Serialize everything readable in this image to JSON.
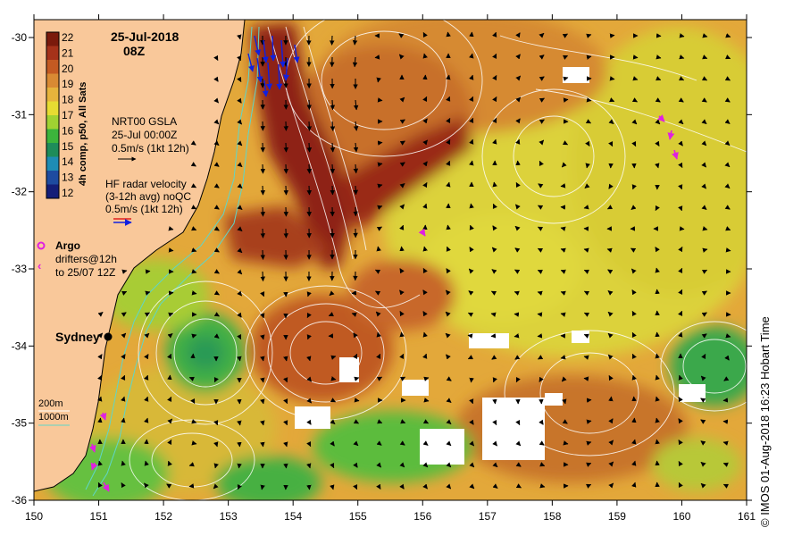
{
  "map": {
    "date": "25-Jul-2018",
    "time": "08Z",
    "colorbar": {
      "label": "4h comp, p50, All Sats",
      "ticks": [
        "22",
        "21",
        "20",
        "19",
        "18",
        "17",
        "16",
        "15",
        "14",
        "13",
        "12"
      ],
      "colors": [
        "#7a1a0c",
        "#a5321a",
        "#c45a22",
        "#d98a33",
        "#e6b43c",
        "#e6dc32",
        "#a0d232",
        "#3cb43c",
        "#1e8c5a",
        "#1e8cb4",
        "#1e4ba0",
        "#141e78"
      ]
    },
    "gsla": {
      "line1": "NRT00 GSLA",
      "line2": "25-Jul 00:00Z",
      "line3": "0.5m/s (1kt 12h)"
    },
    "radar": {
      "line1": "HF radar velocity",
      "line2": "(3-12h avg) noQC",
      "line3": "0.5m/s (1kt 12h)"
    },
    "argo": {
      "label": "Argo",
      "line1": "drifters@12h",
      "line2": "to 25/07 12Z"
    },
    "city": "Sydney",
    "depth": {
      "a": "200m",
      "b": "1000m"
    },
    "x_ticks": [
      "150",
      "151",
      "152",
      "153",
      "154",
      "155",
      "156",
      "157",
      "158",
      "159",
      "160",
      "161"
    ],
    "y_ticks": [
      "-30",
      "-31",
      "-32",
      "-33",
      "-34",
      "-35",
      "-36"
    ],
    "copyright": "© IMOS 01-Aug-2018 16:23 Hobart Time",
    "colors": {
      "land": "#f9c89a",
      "warm": "#c45a22",
      "ocean_base": "#e6a838"
    }
  }
}
